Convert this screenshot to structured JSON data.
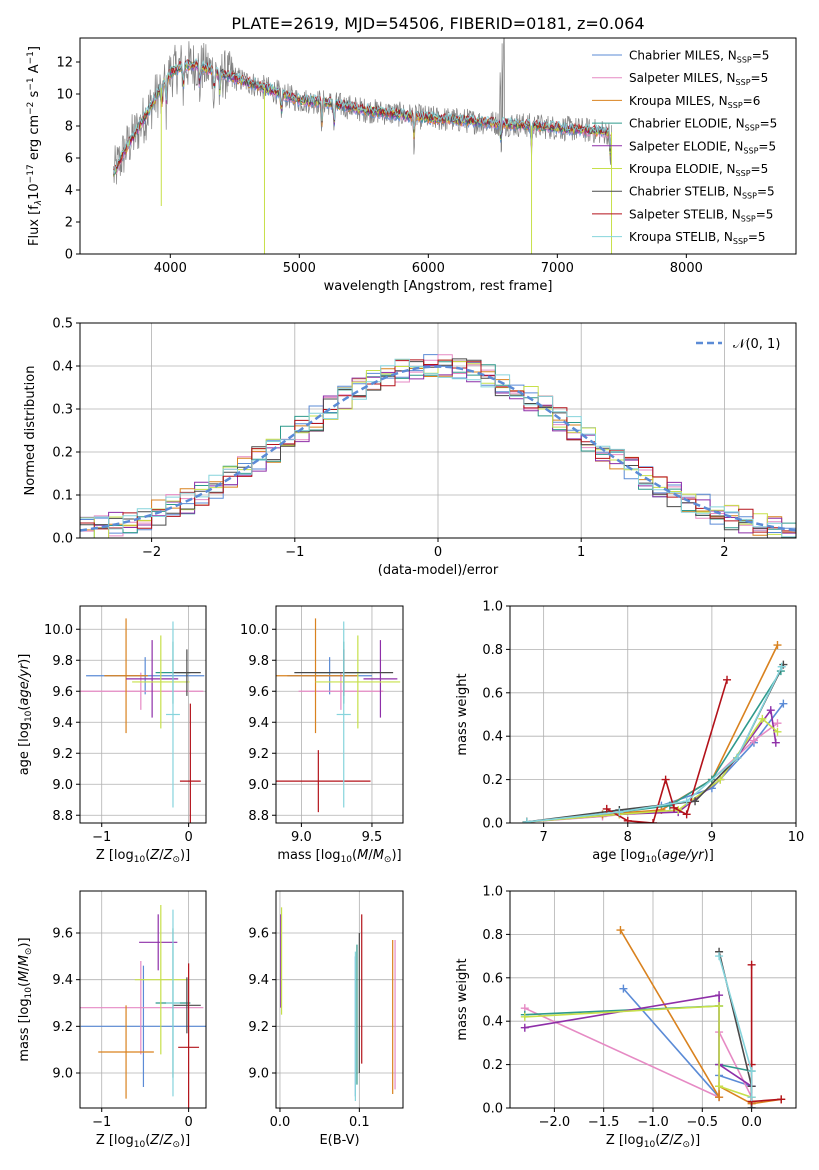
{
  "figure_title": "PLATE=2619, MJD=54506, FIBERID=0181, z=0.064",
  "models": [
    {
      "name": "Chabrier MILES",
      "n": "5",
      "color": "#5b8bd6"
    },
    {
      "name": "Salpeter MILES",
      "n": "5",
      "color": "#e68ac4"
    },
    {
      "name": "Kroupa MILES",
      "n": "6",
      "color": "#d9821f"
    },
    {
      "name": "Chabrier ELODIE",
      "n": "5",
      "color": "#2f9a8c"
    },
    {
      "name": "Salpeter ELODIE",
      "n": "5",
      "color": "#8e2fa8"
    },
    {
      "name": "Kroupa ELODIE",
      "n": "5",
      "color": "#c7e04a"
    },
    {
      "name": "Chabrier STELIB",
      "n": "5",
      "color": "#4a4a4a"
    },
    {
      "name": "Salpeter STELIB",
      "n": "5",
      "color": "#b3121a"
    },
    {
      "name": "Kroupa STELIB",
      "n": "5",
      "color": "#86d4dc"
    }
  ],
  "legend_n_prefix": "N",
  "legend_n_sub": "SSP",
  "chart_data": [
    {
      "id": "spectrum",
      "type": "line",
      "xlabel": "wavelength [Angstrom, rest frame]",
      "ylabel_parts": [
        "Flux [f",
        "λ",
        "10",
        "−17",
        " erg cm",
        "−2",
        " s",
        "−1",
        " A",
        "−1",
        "]"
      ],
      "xlim": [
        3300,
        8850
      ],
      "ylim": [
        0,
        13.5
      ],
      "xticks": [
        4000,
        5000,
        6000,
        7000,
        8000
      ],
      "yticks": [
        0,
        2,
        4,
        6,
        8,
        10,
        12
      ],
      "grid": false,
      "legend": "top-right",
      "continuum": {
        "x": [
          3560,
          3650,
          3800,
          3900,
          4000,
          4100,
          4200,
          4500,
          4800,
          5000,
          5200,
          5500,
          6000,
          6500,
          7000,
          7400
        ],
        "y": [
          5.0,
          6.5,
          8.5,
          10.0,
          11.3,
          11.8,
          11.8,
          11.0,
          10.2,
          9.6,
          9.5,
          9.0,
          8.5,
          8.2,
          7.9,
          7.6
        ]
      },
      "absorption_lines": [
        3933,
        3968,
        4102,
        4227,
        4340,
        4383,
        4861,
        5175,
        5270,
        5890,
        6563,
        6800,
        7410
      ]
    },
    {
      "id": "residuals",
      "type": "bar",
      "xlabel": "(data-model)/error",
      "ylabel": "Normed distribution",
      "xlim": [
        -2.5,
        2.5
      ],
      "ylim": [
        0,
        0.5
      ],
      "xticks": [
        -2,
        -1,
        0,
        1,
        2
      ],
      "yticks": [
        0.0,
        0.1,
        0.2,
        0.3,
        0.4,
        0.5
      ],
      "grid": true,
      "legend": "top-right",
      "reference_label": "𝒩(0, 1)",
      "reference_color": "#5b8bd6",
      "bin_edges_start": -2.5,
      "bin_width": 0.1,
      "bin_count": 50,
      "spread": 0.03
    },
    {
      "id": "age_vs_Z",
      "type": "scatter",
      "xlabel": "Z [log10(Z/Z⊙)]",
      "ylabel": "age  [log10(age/yr)]",
      "xlim": [
        -1.25,
        0.2
      ],
      "ylim": [
        8.75,
        10.15
      ],
      "xticks": [
        -1,
        0
      ],
      "yticks": [
        8.8,
        9.0,
        9.2,
        9.4,
        9.6,
        9.8,
        10.0
      ],
      "grid": true,
      "points": [
        {
          "x": -0.5,
          "xerr": 0.68,
          "y": 9.7,
          "yerr": 0.12,
          "model": 0
        },
        {
          "x": -0.55,
          "xerr": 0.72,
          "y": 9.6,
          "yerr": 0.12,
          "model": 1
        },
        {
          "x": -0.72,
          "xerr": 0.25,
          "y": 9.7,
          "yerr": 0.37,
          "model": 2
        },
        {
          "x": -0.18,
          "xerr": 0.2,
          "y": 9.72,
          "yerr": 0.2,
          "model": 3
        },
        {
          "x": -0.42,
          "xerr": 0.3,
          "y": 9.68,
          "yerr": 0.25,
          "model": 4
        },
        {
          "x": -0.32,
          "xerr": 0.33,
          "y": 9.66,
          "yerr": 0.3,
          "model": 5
        },
        {
          "x": -0.02,
          "xerr": 0.16,
          "y": 9.72,
          "yerr": 0.15,
          "model": 6
        },
        {
          "x": 0.02,
          "xerr": 0.12,
          "y": 9.02,
          "yerr": 0.5,
          "model": 7
        },
        {
          "x": -0.18,
          "xerr": 0.08,
          "y": 9.45,
          "yerr": 0.6,
          "model": 8
        }
      ]
    },
    {
      "id": "age_vs_mass",
      "type": "scatter",
      "xlabel": "mass [log10(M/M⊙)]",
      "ylabel": "",
      "xlim": [
        8.82,
        9.72
      ],
      "ylim": [
        8.75,
        10.15
      ],
      "xticks": [
        9.0,
        9.5
      ],
      "yticks": [
        8.8,
        9.0,
        9.2,
        9.4,
        9.6,
        9.8,
        10.0
      ],
      "grid": true,
      "points": [
        {
          "x": 9.2,
          "xerr": 0.3,
          "y": 9.7,
          "yerr": 0.12,
          "model": 0
        },
        {
          "x": 9.28,
          "xerr": 0.3,
          "y": 9.6,
          "yerr": 0.12,
          "model": 1
        },
        {
          "x": 9.1,
          "xerr": 0.3,
          "y": 9.7,
          "yerr": 0.37,
          "model": 2
        },
        {
          "x": 9.3,
          "xerr": 0.2,
          "y": 9.72,
          "yerr": 0.2,
          "model": 3
        },
        {
          "x": 9.56,
          "xerr": 0.12,
          "y": 9.68,
          "yerr": 0.25,
          "model": 4
        },
        {
          "x": 9.4,
          "xerr": 0.3,
          "y": 9.66,
          "yerr": 0.3,
          "model": 5
        },
        {
          "x": 9.3,
          "xerr": 0.35,
          "y": 9.72,
          "yerr": 0.15,
          "model": 6
        },
        {
          "x": 9.12,
          "xerr": 0.37,
          "y": 9.02,
          "yerr": 0.2,
          "model": 7
        },
        {
          "x": 9.3,
          "xerr": 0.05,
          "y": 9.45,
          "yerr": 0.6,
          "model": 8
        }
      ]
    },
    {
      "id": "weight_vs_age",
      "type": "line",
      "xlabel": "age  [log10(age/yr)]",
      "ylabel": "mass weight",
      "xlim": [
        6.6,
        10
      ],
      "ylim": [
        0,
        1.0
      ],
      "xticks": [
        7,
        8,
        9,
        10
      ],
      "yticks": [
        0.0,
        0.2,
        0.4,
        0.6,
        0.8,
        1.0
      ],
      "grid": true,
      "series": [
        {
          "model": 0,
          "x": [
            6.8,
            7.7,
            8.4,
            9.0,
            9.5,
            9.85
          ],
          "y": [
            0.005,
            0.04,
            0.08,
            0.16,
            0.37,
            0.55
          ]
        },
        {
          "model": 1,
          "x": [
            6.8,
            7.7,
            8.4,
            9.0,
            9.5,
            9.78
          ],
          "y": [
            0.005,
            0.03,
            0.06,
            0.2,
            0.38,
            0.46
          ]
        },
        {
          "model": 2,
          "x": [
            6.8,
            7.7,
            8.4,
            9.0,
            9.78
          ],
          "y": [
            0.005,
            0.04,
            0.06,
            0.2,
            0.82
          ]
        },
        {
          "model": 3,
          "x": [
            6.8,
            7.9,
            8.5,
            9.0,
            9.82
          ],
          "y": [
            0.005,
            0.05,
            0.08,
            0.2,
            0.7
          ]
        },
        {
          "model": 4,
          "x": [
            6.8,
            7.9,
            8.6,
            9.1,
            9.7,
            9.76
          ],
          "y": [
            0.005,
            0.04,
            0.05,
            0.2,
            0.52,
            0.37
          ]
        },
        {
          "model": 5,
          "x": [
            6.8,
            7.9,
            8.6,
            9.1,
            9.6,
            9.78
          ],
          "y": [
            0.005,
            0.04,
            0.06,
            0.2,
            0.48,
            0.42
          ]
        },
        {
          "model": 6,
          "x": [
            6.8,
            7.9,
            8.8,
            9.3,
            9.85
          ],
          "y": [
            0.005,
            0.06,
            0.1,
            0.3,
            0.73
          ]
        },
        {
          "model": 7,
          "x": [
            7.75,
            8.0,
            8.3,
            8.45,
            8.55,
            8.7,
            9.18
          ],
          "y": [
            0.065,
            0.01,
            0.0,
            0.2,
            0.07,
            0.04,
            0.66
          ]
        },
        {
          "model": 8,
          "x": [
            6.8,
            7.9,
            8.7,
            9.3,
            9.83
          ],
          "y": [
            0.005,
            0.05,
            0.1,
            0.3,
            0.72
          ]
        }
      ]
    },
    {
      "id": "mass_vs_Z",
      "type": "scatter",
      "xlabel": "Z [log10(Z/Z⊙)]",
      "ylabel": "mass [log10(M/M⊙)]",
      "xlim": [
        -1.25,
        0.2
      ],
      "ylim": [
        8.85,
        9.78
      ],
      "xticks": [
        -1,
        0
      ],
      "yticks": [
        9.0,
        9.2,
        9.4,
        9.6
      ],
      "grid": true,
      "points": [
        {
          "x": -0.52,
          "xerr": 0.72,
          "y": 9.2,
          "yerr": 0.26,
          "model": 0
        },
        {
          "x": -0.55,
          "xerr": 0.72,
          "y": 9.28,
          "yerr": 0.2,
          "model": 1
        },
        {
          "x": -0.72,
          "xerr": 0.32,
          "y": 9.09,
          "yerr": 0.2,
          "model": 2
        },
        {
          "x": -0.18,
          "xerr": 0.2,
          "y": 9.3,
          "yerr": 0.32,
          "model": 3
        },
        {
          "x": -0.35,
          "xerr": 0.22,
          "y": 9.56,
          "yerr": 0.12,
          "model": 4
        },
        {
          "x": -0.32,
          "xerr": 0.3,
          "y": 9.4,
          "yerr": 0.32,
          "model": 5
        },
        {
          "x": -0.02,
          "xerr": 0.16,
          "y": 9.29,
          "yerr": 0.12,
          "model": 6
        },
        {
          "x": 0.0,
          "xerr": 0.12,
          "y": 9.11,
          "yerr": 0.36,
          "model": 7
        },
        {
          "x": -0.18,
          "xerr": 0.08,
          "y": 9.3,
          "yerr": 0.4,
          "model": 8
        }
      ]
    },
    {
      "id": "mass_vs_ebv",
      "type": "scatter",
      "xlabel": "E(B-V)",
      "ylabel": "",
      "xlim": [
        -0.005,
        0.155
      ],
      "ylim": [
        8.85,
        9.78
      ],
      "xticks": [
        0.0,
        0.1
      ],
      "yticks": [
        9.0,
        9.2,
        9.4,
        9.6
      ],
      "grid": true,
      "points": [
        {
          "x": 0.095,
          "y": 9.2,
          "yerr": 0.3,
          "model": 0
        },
        {
          "x": 0.145,
          "y": 9.25,
          "yerr": 0.32,
          "model": 1
        },
        {
          "x": 0.142,
          "y": 9.24,
          "yerr": 0.33,
          "model": 2
        },
        {
          "x": 0.097,
          "y": 9.25,
          "yerr": 0.3,
          "model": 3
        },
        {
          "x": 0.001,
          "y": 9.48,
          "yerr": 0.2,
          "model": 4
        },
        {
          "x": 0.002,
          "y": 9.48,
          "yerr": 0.23,
          "model": 5
        },
        {
          "x": 0.1,
          "y": 9.3,
          "yerr": 0.3,
          "model": 6
        },
        {
          "x": 0.103,
          "y": 9.36,
          "yerr": 0.32,
          "model": 7
        },
        {
          "x": 0.095,
          "y": 9.2,
          "yerr": 0.32,
          "model": 8
        }
      ]
    },
    {
      "id": "weight_vs_Z",
      "type": "line",
      "xlabel": "Z [log10(Z/Z⊙)]",
      "ylabel": "mass weight",
      "xlim": [
        -2.45,
        0.45
      ],
      "ylim": [
        0,
        1.0
      ],
      "xticks": [
        -2.0,
        -1.5,
        -1.0,
        -0.5,
        0.0
      ],
      "yticks": [
        0.0,
        0.2,
        0.4,
        0.6,
        0.8,
        1.0
      ],
      "grid": true,
      "series": [
        {
          "model": 0,
          "x": [
            -1.3,
            -0.33,
            -0.33,
            0.0,
            0.0
          ],
          "y": [
            0.55,
            0.05,
            0.15,
            0.1,
            0.0
          ]
        },
        {
          "model": 1,
          "x": [
            -2.3,
            -0.33,
            -0.33,
            0.0
          ],
          "y": [
            0.46,
            0.05,
            0.35,
            0.05
          ]
        },
        {
          "model": 2,
          "x": [
            -1.33,
            -0.33,
            -0.33,
            0.0,
            0.3
          ],
          "y": [
            0.82,
            0.05,
            0.1,
            0.02,
            0.04
          ]
        },
        {
          "model": 3,
          "x": [
            -2.3,
            -0.33,
            -0.33,
            0.0
          ],
          "y": [
            0.43,
            0.47,
            0.2,
            0.17
          ]
        },
        {
          "model": 4,
          "x": [
            -2.3,
            -0.33,
            -0.33,
            0.0
          ],
          "y": [
            0.37,
            0.52,
            0.2,
            0.1
          ]
        },
        {
          "model": 5,
          "x": [
            -2.3,
            -0.33,
            -0.33,
            0.0
          ],
          "y": [
            0.42,
            0.47,
            0.1,
            0.05
          ]
        },
        {
          "model": 6,
          "x": [
            -0.33,
            0.0,
            0.0
          ],
          "y": [
            0.72,
            0.1,
            0.0
          ]
        },
        {
          "model": 7,
          "x": [
            0.0,
            0.0,
            0.0,
            0.3
          ],
          "y": [
            0.66,
            0.2,
            0.03,
            0.04
          ]
        },
        {
          "model": 8,
          "x": [
            -0.33,
            0.0,
            0.0
          ],
          "y": [
            0.7,
            0.17,
            0.05
          ]
        }
      ]
    }
  ]
}
